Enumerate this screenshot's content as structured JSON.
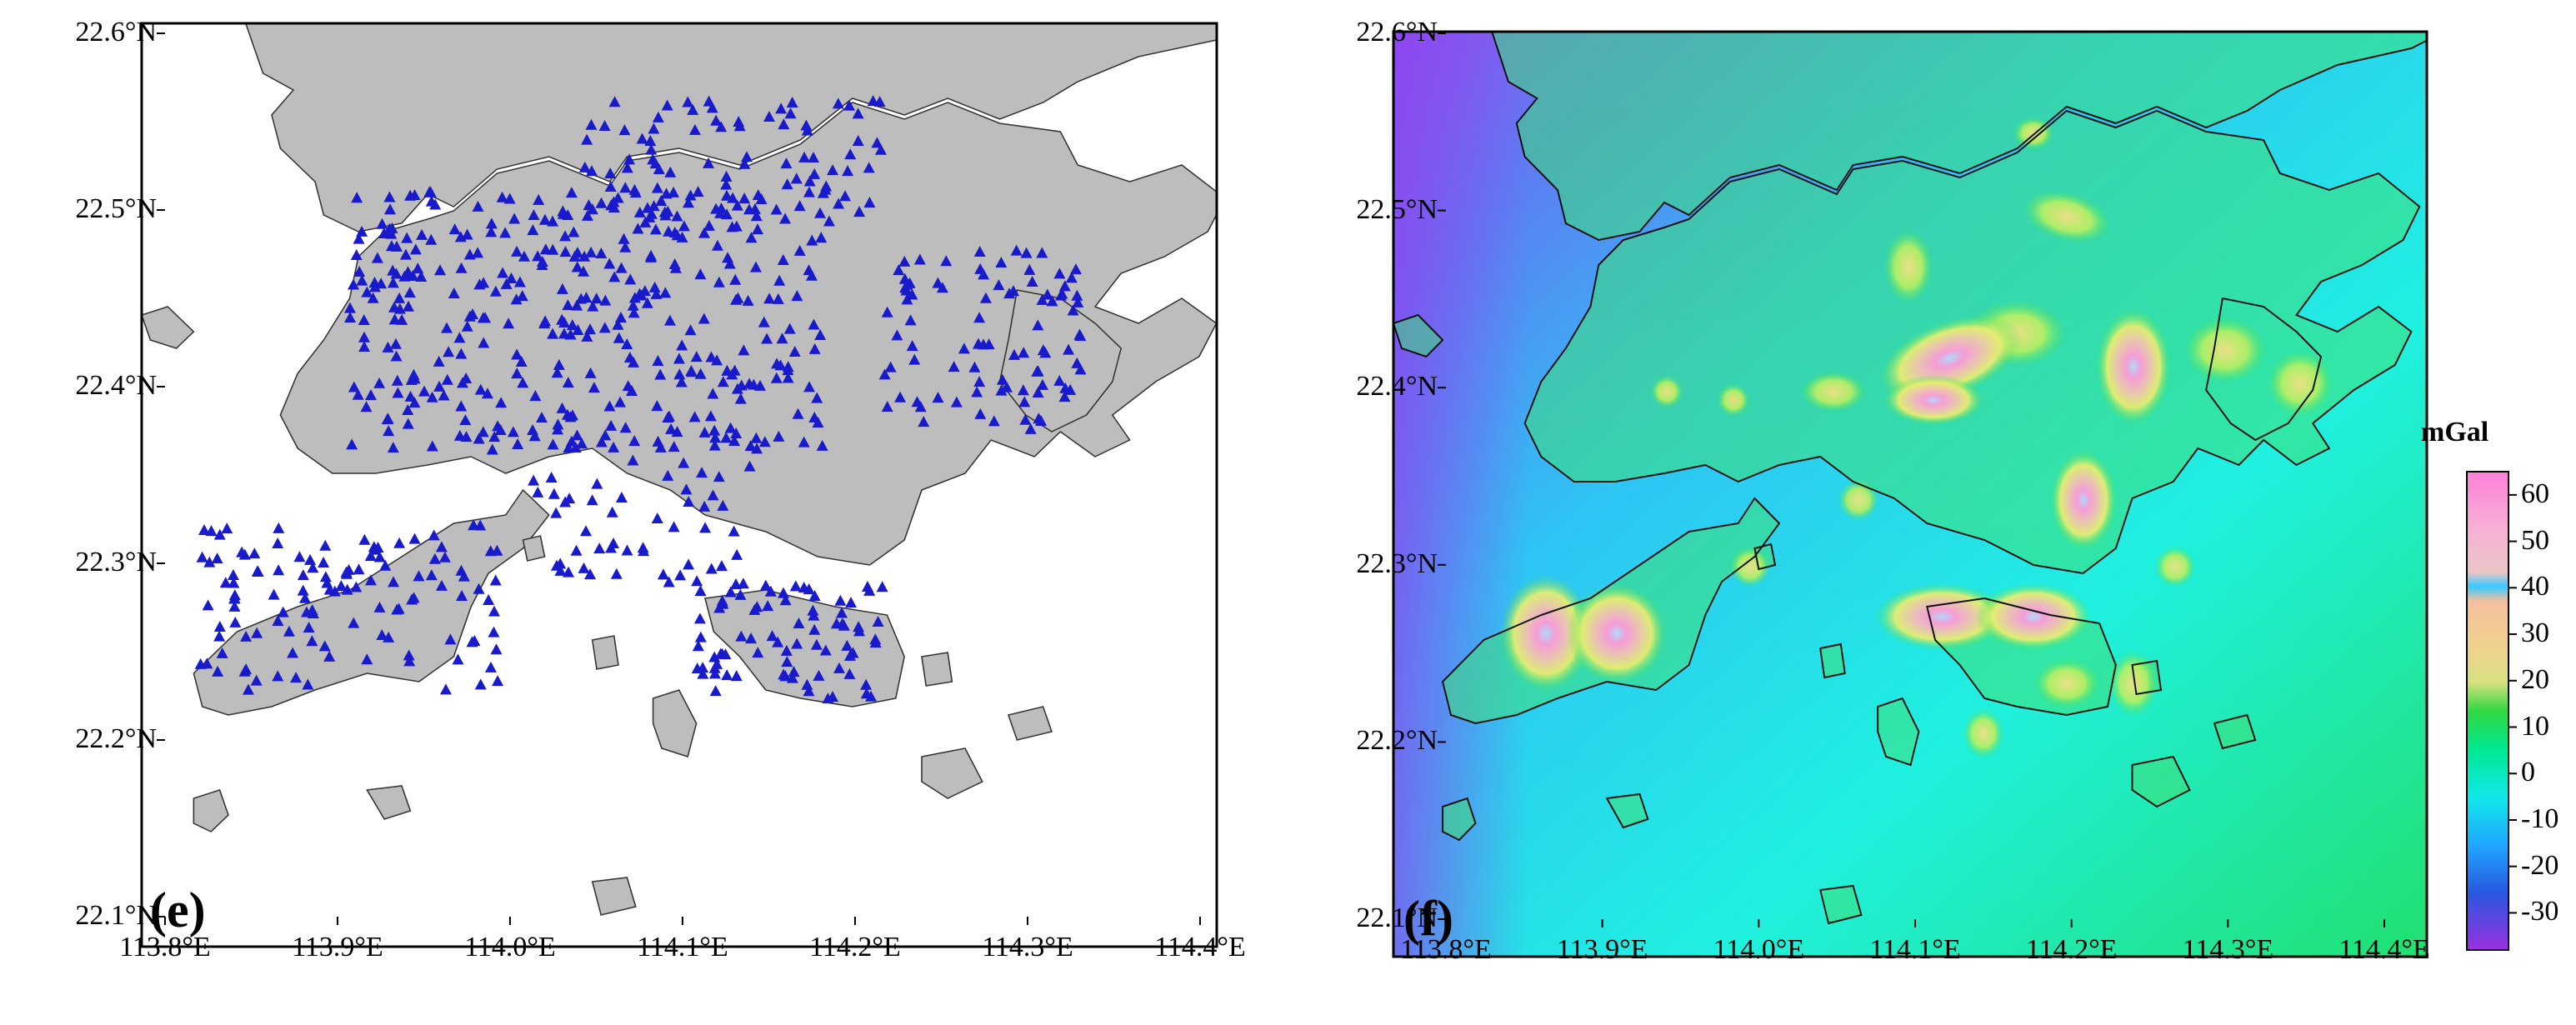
{
  "panels": [
    {
      "id": "e",
      "label": "(e)",
      "lat_ticks": [
        "22.6°N",
        "22.5°N",
        "22.4°N",
        "22.3°N",
        "22.2°N",
        "22.1°N"
      ],
      "lon_ticks": [
        "113.8°E",
        "113.9°E",
        "114.0°E",
        "114.1°E",
        "114.2°E",
        "114.3°E",
        "114.4°E"
      ],
      "land_color": "#bdbdbd",
      "marker": "triangle",
      "marker_color": "#1a1acd"
    },
    {
      "id": "f",
      "label": "(f)",
      "lat_ticks": [
        "22.6°N",
        "22.5°N",
        "22.4°N",
        "22.3°N",
        "22.2°N",
        "22.1°N"
      ],
      "lon_ticks": [
        "113.8°E",
        "113.9°E",
        "114.0°E",
        "114.1°E",
        "114.2°E",
        "114.3°E",
        "114.4°E"
      ]
    }
  ],
  "colorbar": {
    "title": "mGal",
    "ticks": [
      "60",
      "50",
      "40",
      "30",
      "20",
      "10",
      "0",
      "-10",
      "-20",
      "-30"
    ],
    "colors": [
      "#ff88dd",
      "#f2c4c4",
      "#38c8ff",
      "#f4b99a",
      "#c8e080",
      "#20d840",
      "#00f0a0",
      "#10e8e0",
      "#20a0ff",
      "#3040d0",
      "#9a30e0"
    ]
  }
}
